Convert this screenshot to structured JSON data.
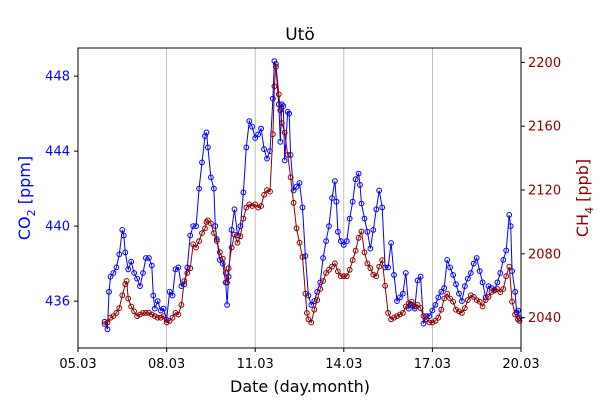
{
  "chart_data": {
    "type": "line",
    "title": "Utö",
    "xlabel": "Date (day.month)",
    "x_tick_labels": [
      "05.03",
      "08.03",
      "11.03",
      "14.03",
      "17.03",
      "20.03"
    ],
    "x_ticks_day": [
      5,
      8,
      11,
      14,
      17,
      20
    ],
    "xlim_day": [
      5,
      20
    ],
    "x_grid_days": [
      8,
      11,
      14,
      17
    ],
    "y_left": {
      "label_main": "CO",
      "label_sub": "2",
      "label_unit": " [ppm]",
      "ticks": [
        436,
        440,
        444,
        448
      ],
      "lim": [
        433.5,
        449.5
      ],
      "color": "#0000ff"
    },
    "y_right": {
      "label_main": "CH",
      "label_sub": "4",
      "label_unit": " [ppb]",
      "ticks": [
        2040,
        2080,
        2120,
        2160,
        2200
      ],
      "lim": [
        2021,
        2209
      ],
      "color": "#8b0000"
    },
    "grid": "vertical",
    "series": [
      {
        "axis": "left",
        "color": "#0000ff",
        "points": [
          [
            5.9,
            434.9
          ],
          [
            6.0,
            434.5
          ],
          [
            6.05,
            436.5
          ],
          [
            6.1,
            437.3
          ],
          [
            6.2,
            437.5
          ],
          [
            6.3,
            437.8
          ],
          [
            6.4,
            438.5
          ],
          [
            6.5,
            439.8
          ],
          [
            6.55,
            439.5
          ],
          [
            6.6,
            438.6
          ],
          [
            6.7,
            437.7
          ],
          [
            6.8,
            438.1
          ],
          [
            6.9,
            437.5
          ],
          [
            7.0,
            437.2
          ],
          [
            7.1,
            436.8
          ],
          [
            7.2,
            437.5
          ],
          [
            7.3,
            438.3
          ],
          [
            7.4,
            438.3
          ],
          [
            7.5,
            437.9
          ],
          [
            7.55,
            436.3
          ],
          [
            7.6,
            435.6
          ],
          [
            7.7,
            436.0
          ],
          [
            7.8,
            435.5
          ],
          [
            7.9,
            435.6
          ],
          [
            8.0,
            435.0
          ],
          [
            8.1,
            436.5
          ],
          [
            8.2,
            436.3
          ],
          [
            8.3,
            437.7
          ],
          [
            8.4,
            437.8
          ],
          [
            8.5,
            436.8
          ],
          [
            8.6,
            436.9
          ],
          [
            8.7,
            437.8
          ],
          [
            8.8,
            439.5
          ],
          [
            8.9,
            440.0
          ],
          [
            9.0,
            440.0
          ],
          [
            9.1,
            442.0
          ],
          [
            9.2,
            443.4
          ],
          [
            9.3,
            444.8
          ],
          [
            9.35,
            445.0
          ],
          [
            9.4,
            444.2
          ],
          [
            9.5,
            442.6
          ],
          [
            9.6,
            442.0
          ],
          [
            9.65,
            440.0
          ],
          [
            9.7,
            439.3
          ],
          [
            9.8,
            438.2
          ],
          [
            9.9,
            438.0
          ],
          [
            10.0,
            437.0
          ],
          [
            10.05,
            435.8
          ],
          [
            10.1,
            437.3
          ],
          [
            10.2,
            439.8
          ],
          [
            10.3,
            440.9
          ],
          [
            10.4,
            439.5
          ],
          [
            10.5,
            440.0
          ],
          [
            10.6,
            441.8
          ],
          [
            10.7,
            444.2
          ],
          [
            10.8,
            445.6
          ],
          [
            10.9,
            445.3
          ],
          [
            11.0,
            444.7
          ],
          [
            11.1,
            444.9
          ],
          [
            11.2,
            445.2
          ],
          [
            11.3,
            444.1
          ],
          [
            11.4,
            443.6
          ],
          [
            11.5,
            444.0
          ],
          [
            11.6,
            446.8
          ],
          [
            11.65,
            448.8
          ],
          [
            11.7,
            448.5
          ],
          [
            11.8,
            446.5
          ],
          [
            11.85,
            444.5
          ],
          [
            11.9,
            446.5
          ],
          [
            11.95,
            446.4
          ],
          [
            12.0,
            443.5
          ],
          [
            12.1,
            446.1
          ],
          [
            12.15,
            446.0
          ],
          [
            12.2,
            443.8
          ],
          [
            12.3,
            441.9
          ],
          [
            12.4,
            442.1
          ],
          [
            12.5,
            442.3
          ],
          [
            12.6,
            441.0
          ],
          [
            12.7,
            438.4
          ],
          [
            12.8,
            436.3
          ],
          [
            12.9,
            435.8
          ],
          [
            13.0,
            436.0
          ],
          [
            13.1,
            436.5
          ],
          [
            13.2,
            437.0
          ],
          [
            13.3,
            438.3
          ],
          [
            13.4,
            439.2
          ],
          [
            13.5,
            440.0
          ],
          [
            13.6,
            441.5
          ],
          [
            13.7,
            442.4
          ],
          [
            13.75,
            441.3
          ],
          [
            13.8,
            439.7
          ],
          [
            13.9,
            439.2
          ],
          [
            14.0,
            439.0
          ],
          [
            14.1,
            439.2
          ],
          [
            14.2,
            440.4
          ],
          [
            14.3,
            441.3
          ],
          [
            14.4,
            442.5
          ],
          [
            14.5,
            442.8
          ],
          [
            14.55,
            442.2
          ],
          [
            14.6,
            441.2
          ],
          [
            14.7,
            440.4
          ],
          [
            14.8,
            439.7
          ],
          [
            14.9,
            438.8
          ],
          [
            15.0,
            439.8
          ],
          [
            15.1,
            440.9
          ],
          [
            15.2,
            441.9
          ],
          [
            15.3,
            441.0
          ],
          [
            15.4,
            437.8
          ],
          [
            15.5,
            437.8
          ],
          [
            15.6,
            439.1
          ],
          [
            15.7,
            437.4
          ],
          [
            15.8,
            436.0
          ],
          [
            15.9,
            436.2
          ],
          [
            16.0,
            436.4
          ],
          [
            16.1,
            437.5
          ],
          [
            16.2,
            435.6
          ],
          [
            16.3,
            435.8
          ],
          [
            16.4,
            435.6
          ],
          [
            16.5,
            437.1
          ],
          [
            16.6,
            437.3
          ],
          [
            16.7,
            434.8
          ],
          [
            16.8,
            435.2
          ],
          [
            16.9,
            435.2
          ],
          [
            17.0,
            435.5
          ],
          [
            17.1,
            435.8
          ],
          [
            17.2,
            436.2
          ],
          [
            17.3,
            436.5
          ],
          [
            17.4,
            436.7
          ],
          [
            17.5,
            438.2
          ],
          [
            17.6,
            437.8
          ],
          [
            17.7,
            437.4
          ],
          [
            17.8,
            436.9
          ],
          [
            17.9,
            436.4
          ],
          [
            18.0,
            436.0
          ],
          [
            18.1,
            436.8
          ],
          [
            18.2,
            437.2
          ],
          [
            18.3,
            437.5
          ],
          [
            18.4,
            438.0
          ],
          [
            18.5,
            438.3
          ],
          [
            18.6,
            437.6
          ],
          [
            18.7,
            437.0
          ],
          [
            18.8,
            436.2
          ],
          [
            18.9,
            436.8
          ],
          [
            19.0,
            436.7
          ],
          [
            19.1,
            436.6
          ],
          [
            19.2,
            437.0
          ],
          [
            19.3,
            437.5
          ],
          [
            19.4,
            438.2
          ],
          [
            19.5,
            438.7
          ],
          [
            19.6,
            440.6
          ],
          [
            19.65,
            440.0
          ],
          [
            19.7,
            437.6
          ],
          [
            19.8,
            436.5
          ],
          [
            19.85,
            435.4
          ],
          [
            19.9,
            435.5
          ],
          [
            19.95,
            435.1
          ]
        ]
      },
      {
        "axis": "right",
        "color": "#8b0000",
        "points": [
          [
            5.9,
            2036
          ],
          [
            6.0,
            2037
          ],
          [
            6.1,
            2040
          ],
          [
            6.2,
            2041
          ],
          [
            6.3,
            2043
          ],
          [
            6.4,
            2046
          ],
          [
            6.5,
            2054
          ],
          [
            6.6,
            2061
          ],
          [
            6.65,
            2063
          ],
          [
            6.7,
            2052
          ],
          [
            6.8,
            2047
          ],
          [
            6.9,
            2044
          ],
          [
            7.0,
            2041
          ],
          [
            7.1,
            2042
          ],
          [
            7.2,
            2043
          ],
          [
            7.3,
            2043
          ],
          [
            7.4,
            2043
          ],
          [
            7.5,
            2042
          ],
          [
            7.6,
            2041
          ],
          [
            7.7,
            2040
          ],
          [
            7.8,
            2040
          ],
          [
            7.9,
            2041
          ],
          [
            8.0,
            2037
          ],
          [
            8.1,
            2038
          ],
          [
            8.2,
            2040
          ],
          [
            8.3,
            2043
          ],
          [
            8.4,
            2042
          ],
          [
            8.5,
            2048
          ],
          [
            8.6,
            2063
          ],
          [
            8.7,
            2068
          ],
          [
            8.8,
            2071
          ],
          [
            8.9,
            2086
          ],
          [
            9.0,
            2084
          ],
          [
            9.1,
            2088
          ],
          [
            9.2,
            2093
          ],
          [
            9.3,
            2096
          ],
          [
            9.35,
            2100
          ],
          [
            9.4,
            2101
          ],
          [
            9.5,
            2099
          ],
          [
            9.6,
            2093
          ],
          [
            9.7,
            2088
          ],
          [
            9.8,
            2081
          ],
          [
            9.9,
            2077
          ],
          [
            10.0,
            2068
          ],
          [
            10.05,
            2062
          ],
          [
            10.1,
            2071
          ],
          [
            10.2,
            2084
          ],
          [
            10.3,
            2092
          ],
          [
            10.4,
            2087
          ],
          [
            10.5,
            2091
          ],
          [
            10.6,
            2102
          ],
          [
            10.7,
            2109
          ],
          [
            10.8,
            2111
          ],
          [
            10.9,
            2110
          ],
          [
            11.0,
            2111
          ],
          [
            11.1,
            2109
          ],
          [
            11.2,
            2110
          ],
          [
            11.3,
            2117
          ],
          [
            11.4,
            2120
          ],
          [
            11.5,
            2119
          ],
          [
            11.6,
            2155
          ],
          [
            11.65,
            2185
          ],
          [
            11.7,
            2199
          ],
          [
            11.8,
            2180
          ],
          [
            11.85,
            2170
          ],
          [
            11.9,
            2162
          ],
          [
            12.0,
            2156
          ],
          [
            12.1,
            2142
          ],
          [
            12.2,
            2128
          ],
          [
            12.3,
            2112
          ],
          [
            12.4,
            2096
          ],
          [
            12.5,
            2087
          ],
          [
            12.6,
            2078
          ],
          [
            12.7,
            2055
          ],
          [
            12.75,
            2043
          ],
          [
            12.8,
            2039
          ],
          [
            12.9,
            2037
          ],
          [
            13.0,
            2045
          ],
          [
            13.1,
            2051
          ],
          [
            13.2,
            2058
          ],
          [
            13.3,
            2063
          ],
          [
            13.4,
            2068
          ],
          [
            13.5,
            2070
          ],
          [
            13.6,
            2072
          ],
          [
            13.7,
            2074
          ],
          [
            13.8,
            2069
          ],
          [
            13.9,
            2066
          ],
          [
            14.0,
            2066
          ],
          [
            14.1,
            2066
          ],
          [
            14.2,
            2070
          ],
          [
            14.3,
            2076
          ],
          [
            14.4,
            2082
          ],
          [
            14.5,
            2090
          ],
          [
            14.6,
            2094
          ],
          [
            14.7,
            2081
          ],
          [
            14.8,
            2074
          ],
          [
            14.9,
            2071
          ],
          [
            15.0,
            2067
          ],
          [
            15.1,
            2066
          ],
          [
            15.2,
            2072
          ],
          [
            15.3,
            2076
          ],
          [
            15.4,
            2060
          ],
          [
            15.5,
            2043
          ],
          [
            15.6,
            2039
          ],
          [
            15.7,
            2040
          ],
          [
            15.8,
            2041
          ],
          [
            15.9,
            2042
          ],
          [
            16.0,
            2043
          ],
          [
            16.1,
            2047
          ],
          [
            16.2,
            2049
          ],
          [
            16.3,
            2050
          ],
          [
            16.4,
            2047
          ],
          [
            16.5,
            2048
          ],
          [
            16.6,
            2046
          ],
          [
            16.7,
            2041
          ],
          [
            16.8,
            2039
          ],
          [
            16.9,
            2037
          ],
          [
            17.0,
            2037
          ],
          [
            17.1,
            2038
          ],
          [
            17.2,
            2040
          ],
          [
            17.3,
            2045
          ],
          [
            17.4,
            2052
          ],
          [
            17.5,
            2055
          ],
          [
            17.6,
            2052
          ],
          [
            17.7,
            2050
          ],
          [
            17.8,
            2045
          ],
          [
            17.9,
            2044
          ],
          [
            18.0,
            2043
          ],
          [
            18.1,
            2046
          ],
          [
            18.2,
            2051
          ],
          [
            18.3,
            2054
          ],
          [
            18.4,
            2053
          ],
          [
            18.5,
            2051
          ],
          [
            18.6,
            2050
          ],
          [
            18.7,
            2047
          ],
          [
            18.8,
            2051
          ],
          [
            18.9,
            2053
          ],
          [
            19.0,
            2056
          ],
          [
            19.1,
            2057
          ],
          [
            19.2,
            2058
          ],
          [
            19.3,
            2056
          ],
          [
            19.4,
            2058
          ],
          [
            19.5,
            2066
          ],
          [
            19.6,
            2072
          ],
          [
            19.7,
            2050
          ],
          [
            19.8,
            2042
          ],
          [
            19.9,
            2039
          ],
          [
            19.95,
            2038
          ]
        ]
      }
    ]
  }
}
